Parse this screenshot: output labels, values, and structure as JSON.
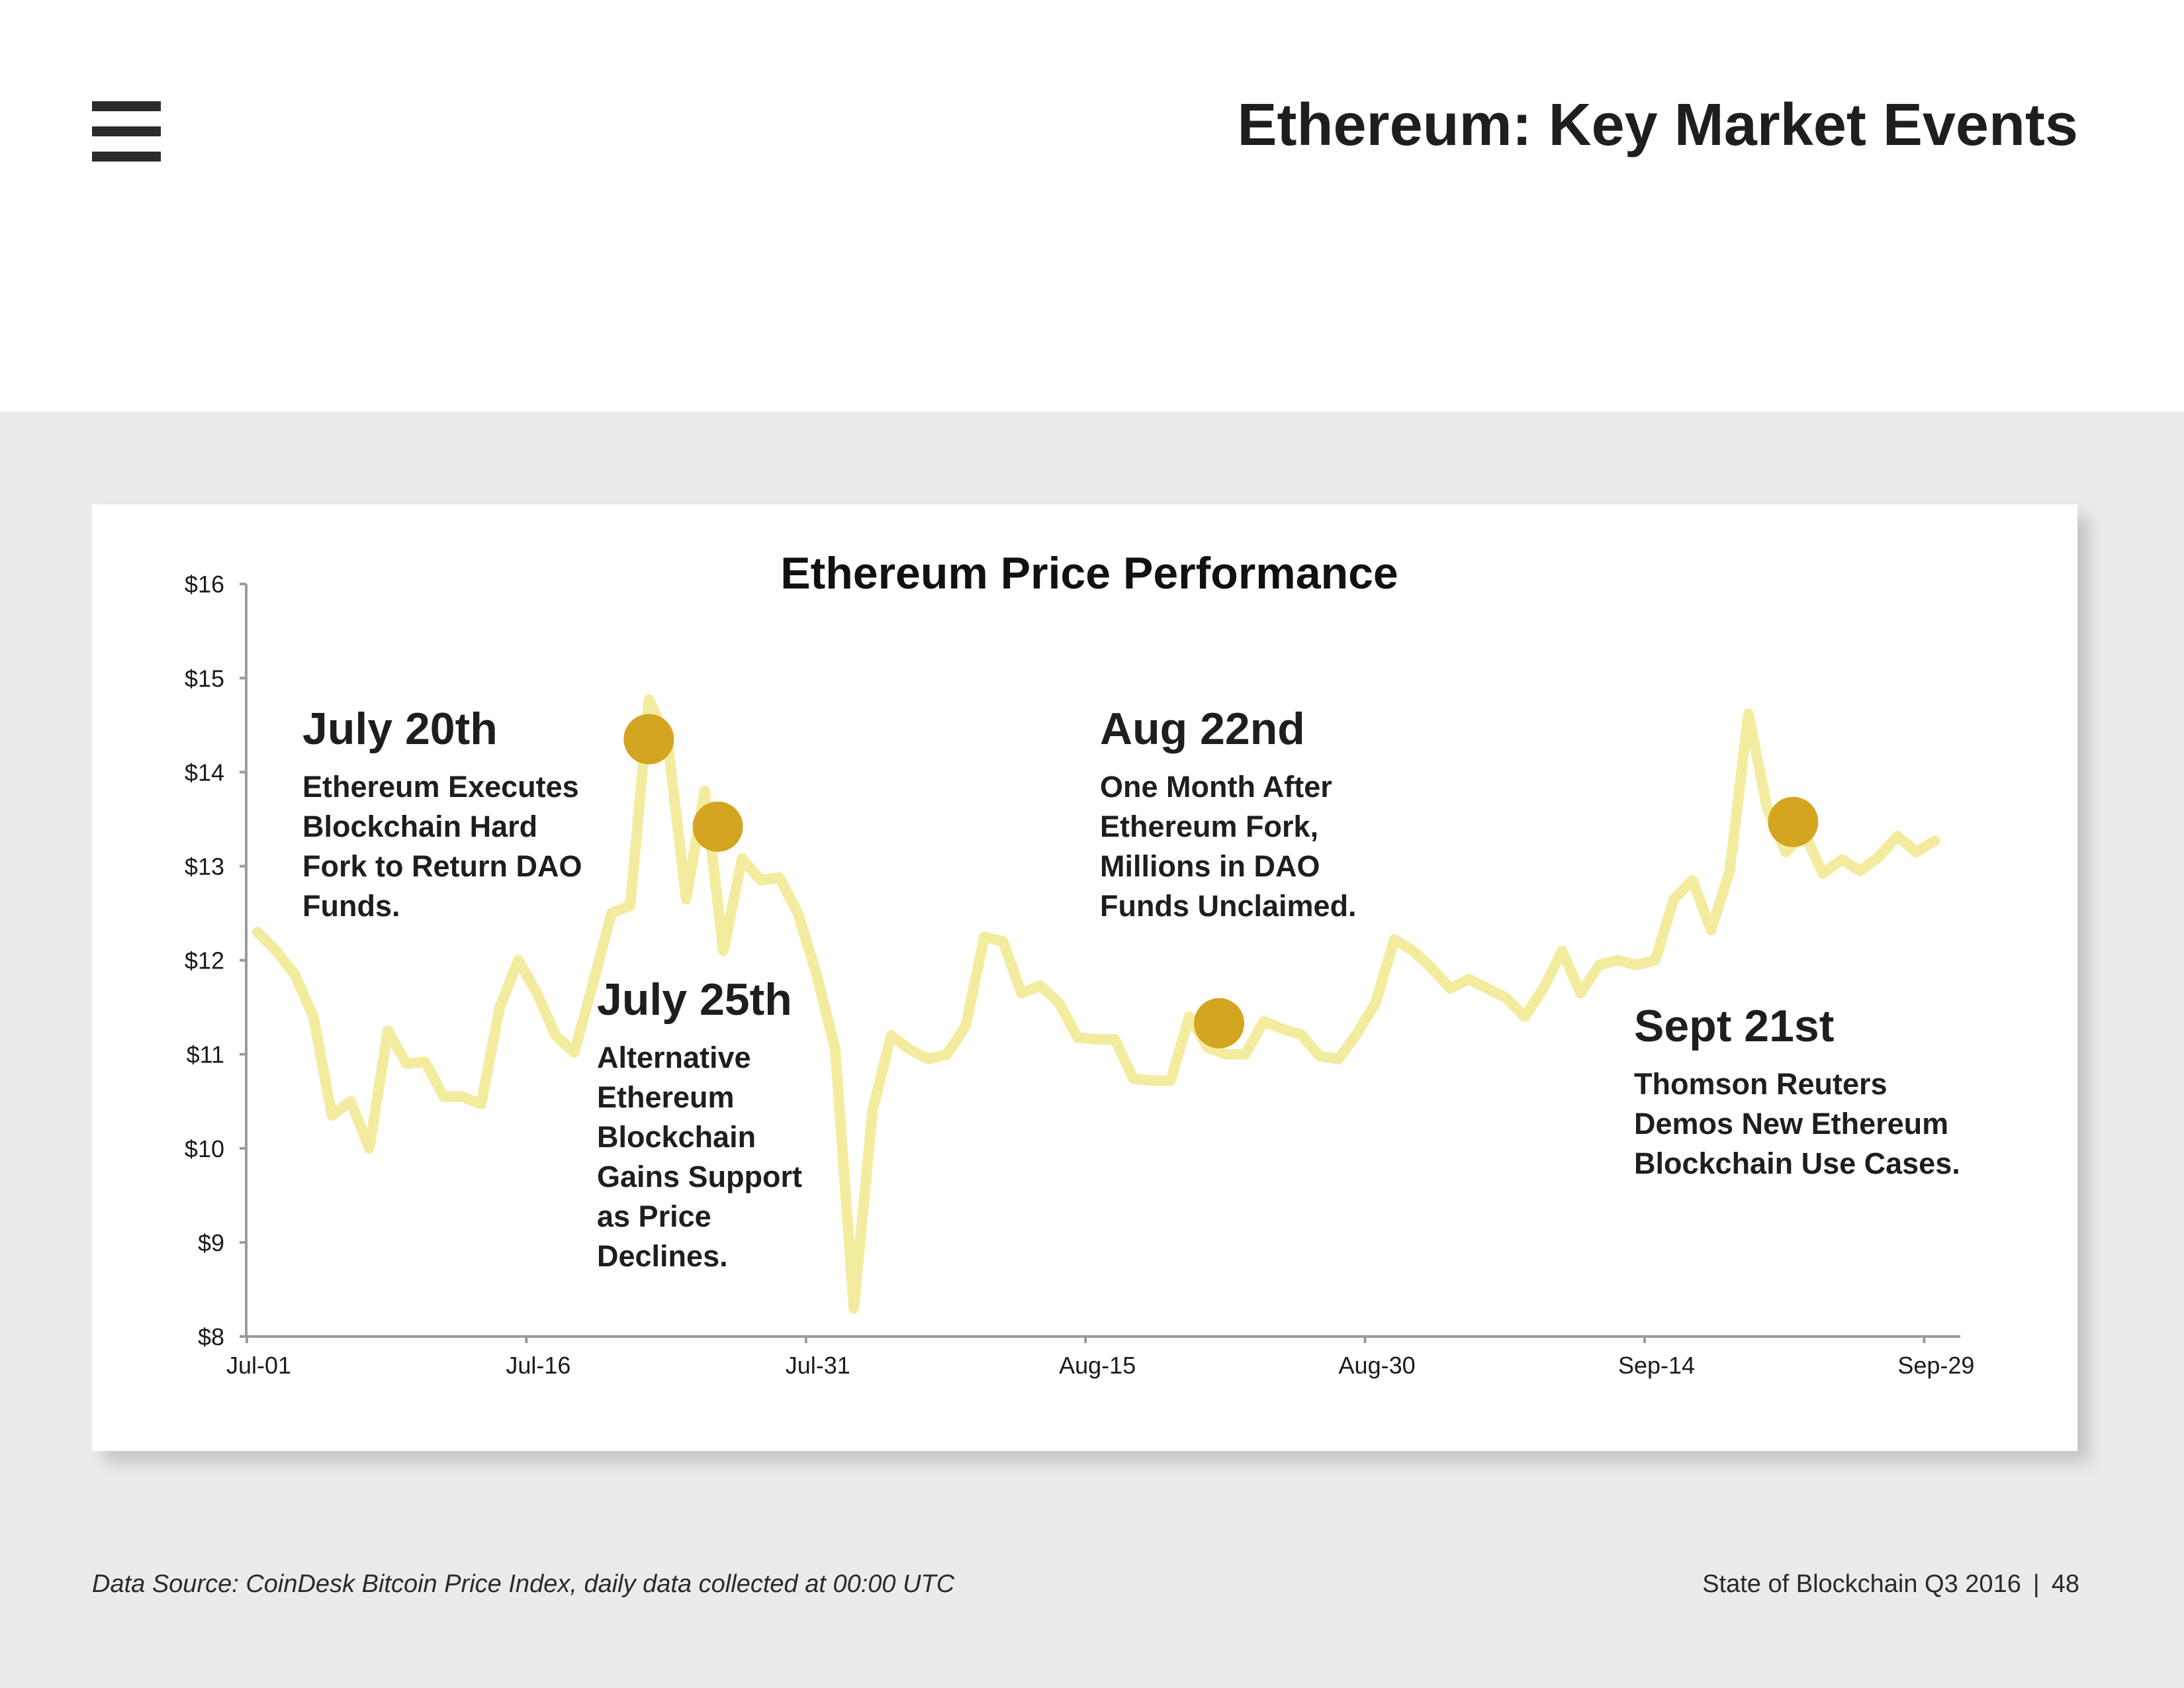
{
  "header": {
    "title": "Ethereum: Key Market Events"
  },
  "icons": {
    "menu": "hamburger-menu-icon"
  },
  "colors": {
    "line": "#f3ec9f",
    "marker": "#d4a520",
    "axis": "#9a9a9a",
    "band": "#ebebeb"
  },
  "chart_data": {
    "type": "line",
    "title": "Ethereum Price Performance",
    "xlabel": "",
    "ylabel": "",
    "ylim": [
      8,
      16
    ],
    "y_ticks": [
      "$8",
      "$9",
      "$10",
      "$11",
      "$12",
      "$13",
      "$14",
      "$15",
      "$16"
    ],
    "x_tick_labels": [
      "Jul-01",
      "Jul-16",
      "Jul-31",
      "Aug-15",
      "Aug-30",
      "Sep-14",
      "Sep-29"
    ],
    "x_tick_days": [
      0,
      15,
      30,
      45,
      60,
      75,
      90
    ],
    "series": [
      {
        "name": "Ethereum Price",
        "values": [
          12.3,
          12.1,
          11.85,
          11.4,
          10.35,
          10.5,
          10.0,
          11.25,
          10.9,
          10.92,
          10.55,
          10.55,
          10.47,
          11.5,
          12.0,
          11.65,
          11.2,
          11.02,
          11.75,
          12.5,
          12.58,
          14.77,
          14.35,
          12.65,
          13.8,
          12.1,
          13.08,
          12.85,
          12.88,
          12.5,
          11.85,
          11.05,
          8.3,
          10.4,
          11.2,
          11.05,
          10.95,
          11.0,
          11.3,
          12.25,
          12.2,
          11.65,
          11.73,
          11.55,
          11.18,
          11.16,
          11.16,
          10.74,
          10.72,
          10.72,
          11.4,
          11.07,
          11.0,
          11.0,
          11.35,
          11.27,
          11.21,
          10.98,
          10.95,
          11.22,
          11.55,
          12.22,
          12.1,
          11.92,
          11.7,
          11.8,
          11.7,
          11.6,
          11.4,
          11.7,
          12.1,
          11.65,
          11.95,
          12.0,
          11.95,
          12.0,
          12.65,
          12.85,
          12.32,
          12.95,
          14.62,
          13.62,
          13.15,
          13.35,
          12.92,
          13.07,
          12.95,
          13.1,
          13.32,
          13.15,
          13.27
        ]
      }
    ],
    "markers": [
      {
        "day": 21,
        "value": 14.35
      },
      {
        "day": 24.7,
        "value": 13.42
      },
      {
        "day": 51.6,
        "value": 11.33
      },
      {
        "day": 82.4,
        "value": 13.47
      }
    ],
    "annotations": [
      {
        "title": "July 20th",
        "lines": [
          "Ethereum Executes",
          "Blockchain Hard",
          "Fork to Return DAO",
          "Funds."
        ]
      },
      {
        "title": "July 25th",
        "lines": [
          "Alternative",
          "Ethereum",
          "Blockchain",
          "Gains Support",
          "as Price",
          "Declines."
        ]
      },
      {
        "title": "Aug 22nd",
        "lines": [
          "One Month After",
          "Ethereum Fork,",
          "Millions in DAO",
          "Funds Unclaimed."
        ]
      },
      {
        "title": "Sept 21st",
        "lines": [
          "Thomson Reuters",
          "Demos New Ethereum",
          "Blockchain Use Cases."
        ]
      }
    ]
  },
  "footer": {
    "source": "Data Source: CoinDesk Bitcoin Price Index, daily data collected at 00:00 UTC",
    "report": "State of Blockchain Q3 2016",
    "separator": "|",
    "page_number": "48"
  }
}
